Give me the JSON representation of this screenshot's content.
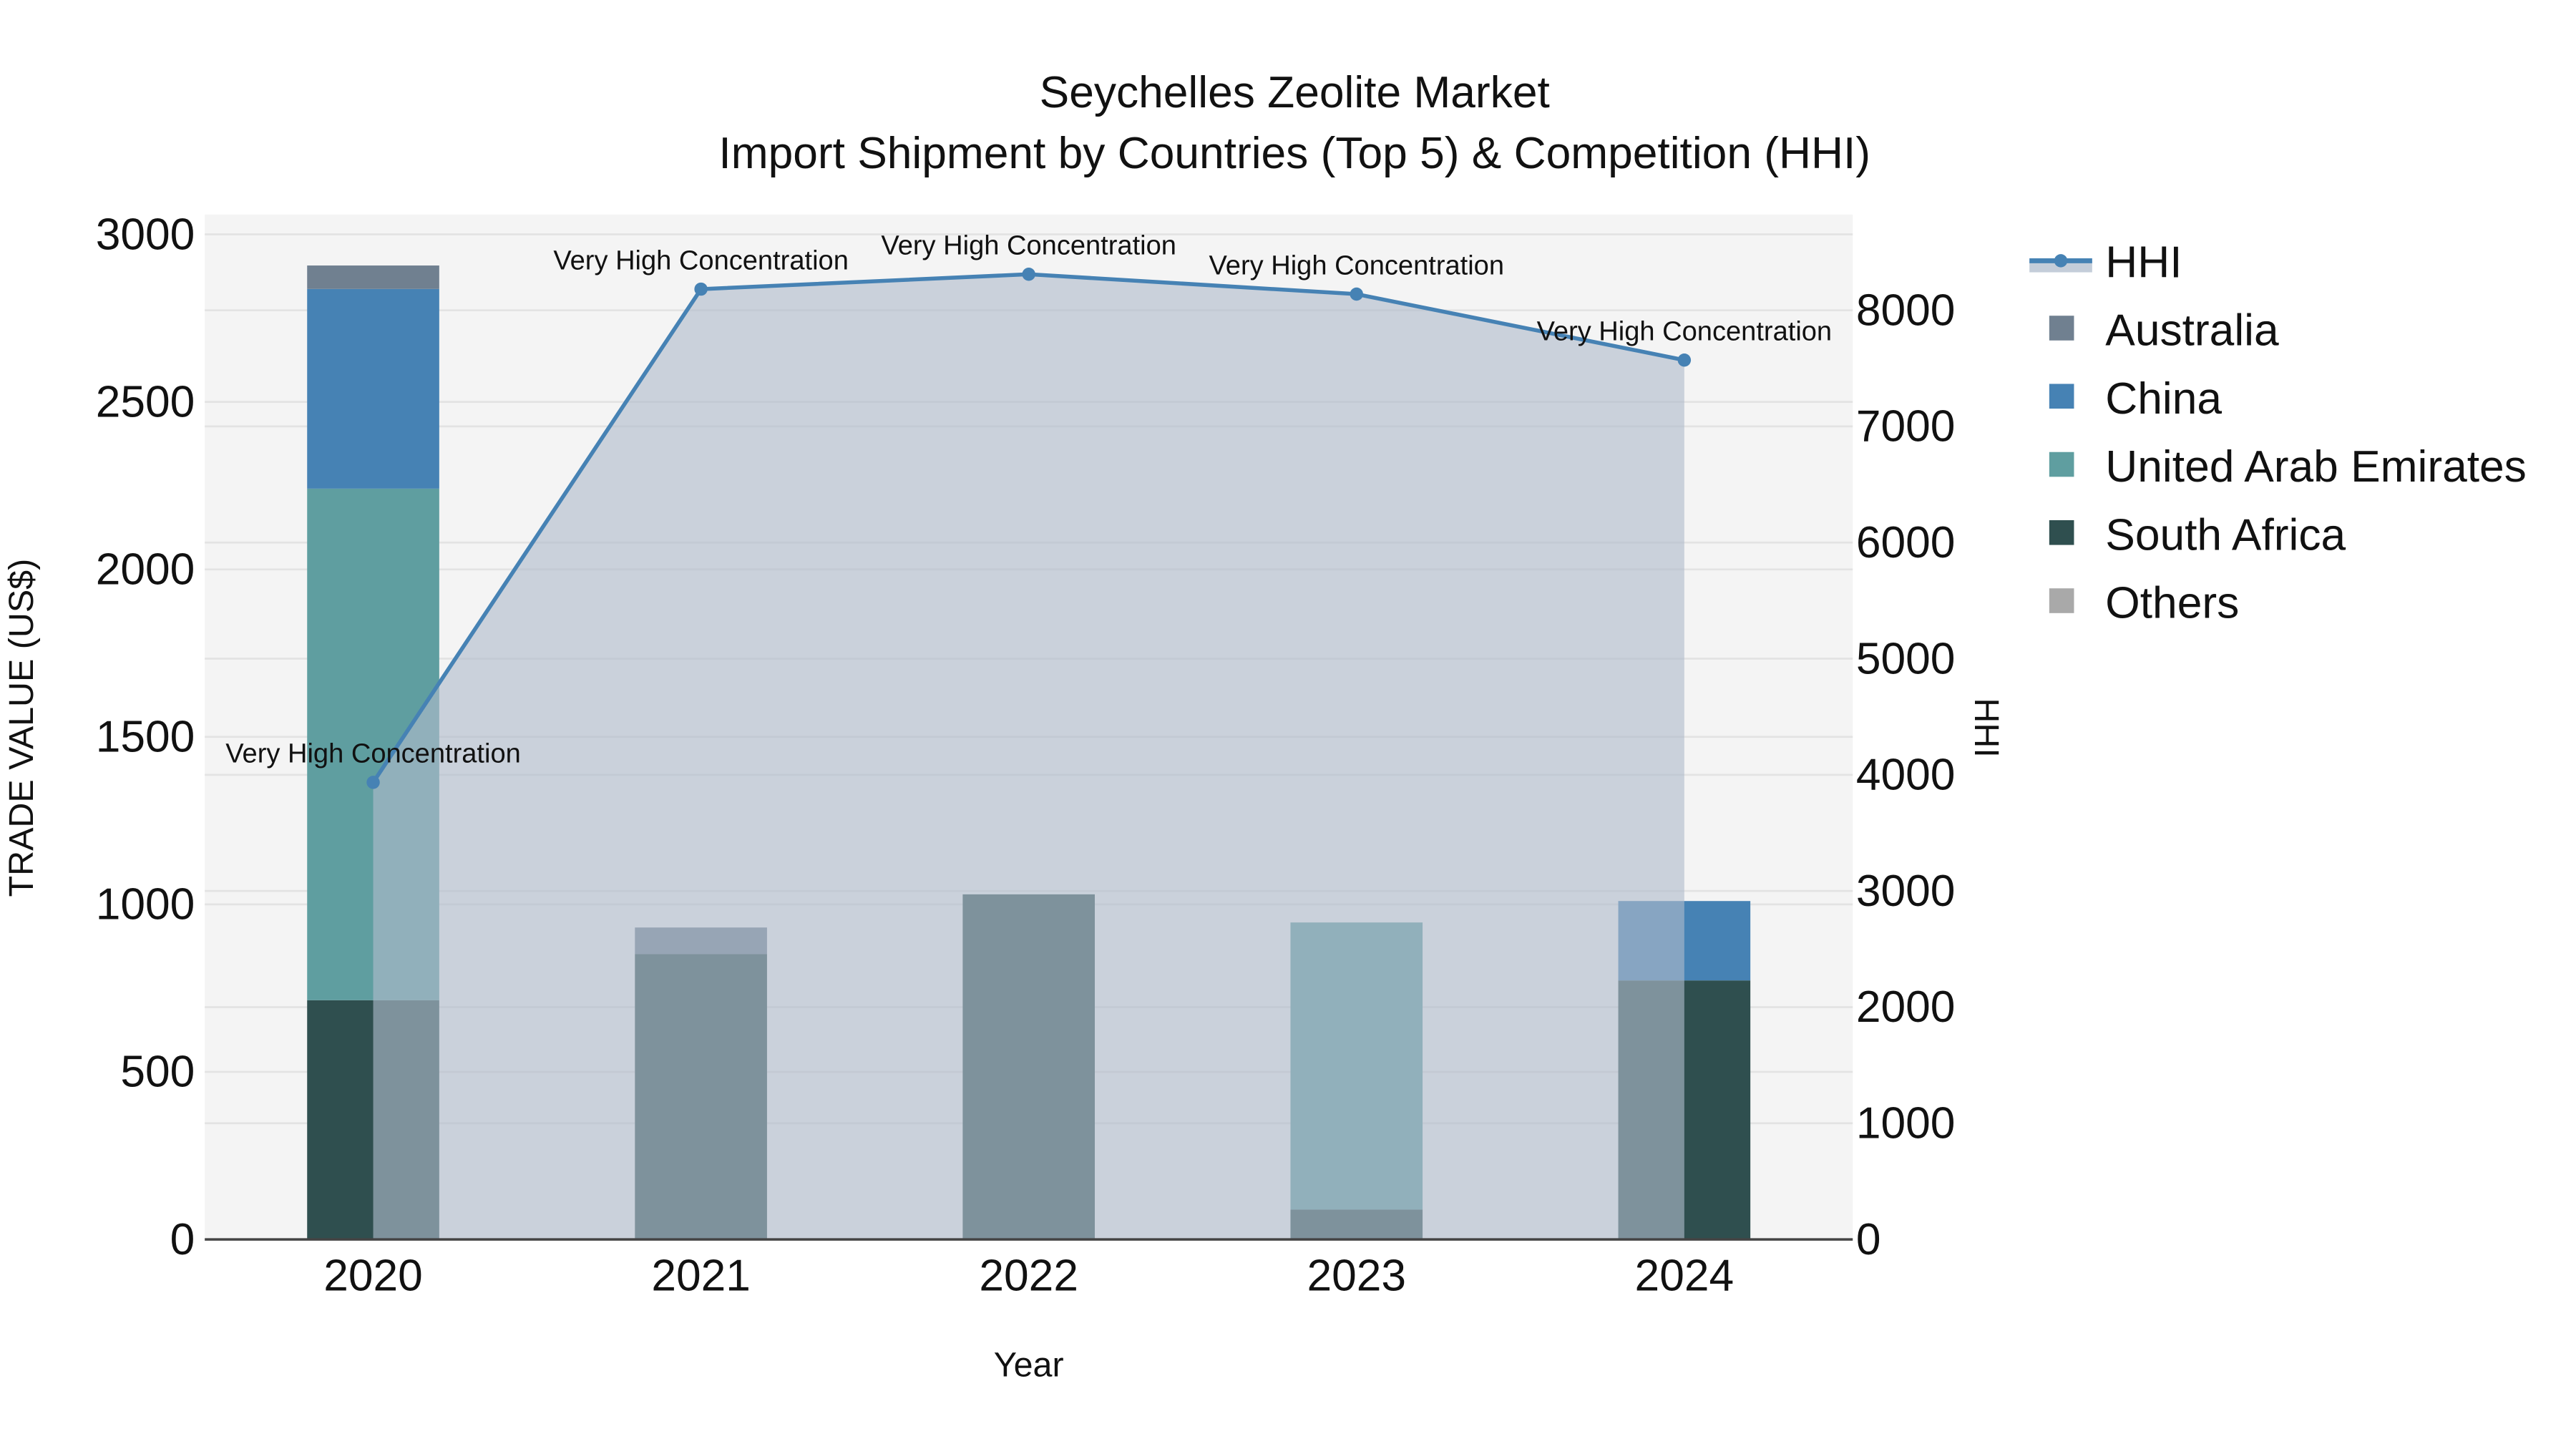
{
  "title": {
    "line1": "Seychelles Zeolite Market",
    "line2": "Import Shipment by Countries (Top 5) & Competition (HHI)"
  },
  "axes": {
    "x_title": "Year",
    "y_left_title": "TRADE VALUE (US$)",
    "y_right_title": "HHI",
    "y_left_ticks": [
      "0",
      "500",
      "1000",
      "1500",
      "2000",
      "2500",
      "3000"
    ],
    "y_right_ticks": [
      "0",
      "1000",
      "2000",
      "3000",
      "4000",
      "5000",
      "6000",
      "7000",
      "8000"
    ],
    "x_ticks": [
      "2020",
      "2021",
      "2022",
      "2023",
      "2024"
    ]
  },
  "legend": {
    "items": [
      {
        "label": "HHI",
        "type": "line",
        "color": "#4682b4"
      },
      {
        "label": "Australia",
        "type": "bar",
        "color": "#708090"
      },
      {
        "label": "China",
        "type": "bar",
        "color": "#4682b4"
      },
      {
        "label": "United Arab Emirates",
        "type": "bar",
        "color": "#5f9ea0"
      },
      {
        "label": "South Africa",
        "type": "bar",
        "color": "#2f4f4f"
      },
      {
        "label": "Others",
        "type": "bar",
        "color": "#a9a9a9"
      }
    ]
  },
  "colors": {
    "plot_bg": "#f4f4f4",
    "hhi_line": "#4682b4",
    "hhi_fill": "rgba(176,188,204,0.62)",
    "axis_line": "#444444"
  },
  "chart_data": {
    "type": "bar",
    "title": "Seychelles Zeolite Market — Import Shipment by Countries (Top 5) & Competition (HHI)",
    "xlabel": "Year",
    "ylabel": "TRADE VALUE (US$)",
    "y2label": "HHI",
    "categories": [
      "2020",
      "2021",
      "2022",
      "2023",
      "2024"
    ],
    "ylim": [
      0,
      3000
    ],
    "y2lim": [
      0,
      8000
    ],
    "stacked": true,
    "grid": true,
    "legend_position": "right",
    "series": [
      {
        "name": "South Africa",
        "type": "bar",
        "color": "#2f4f4f",
        "values": [
          714,
          852,
          1030,
          89,
          773
        ]
      },
      {
        "name": "United Arab Emirates",
        "type": "bar",
        "color": "#5f9ea0",
        "values": [
          1527,
          0,
          0,
          857,
          0
        ]
      },
      {
        "name": "China",
        "type": "bar",
        "color": "#4682b4",
        "values": [
          596,
          0,
          0,
          0,
          237
        ]
      },
      {
        "name": "Australia",
        "type": "bar",
        "color": "#708090",
        "values": [
          70,
          79,
          0,
          0,
          0
        ]
      },
      {
        "name": "Others",
        "type": "bar",
        "color": "#a9a9a9",
        "values": [
          0,
          0,
          0,
          0,
          0
        ]
      },
      {
        "name": "HHI",
        "type": "line+area",
        "axis": "y2",
        "color": "#4682b4",
        "values": [
          3935,
          8182,
          8310,
          8139,
          7571
        ]
      }
    ],
    "annotations": [
      {
        "x": "2020",
        "text": "Very High Concentration"
      },
      {
        "x": "2021",
        "text": "Very High Concentration"
      },
      {
        "x": "2022",
        "text": "Very High Concentration"
      },
      {
        "x": "2023",
        "text": "Very High Concentration"
      },
      {
        "x": "2024",
        "text": "Very High Concentration"
      }
    ]
  }
}
